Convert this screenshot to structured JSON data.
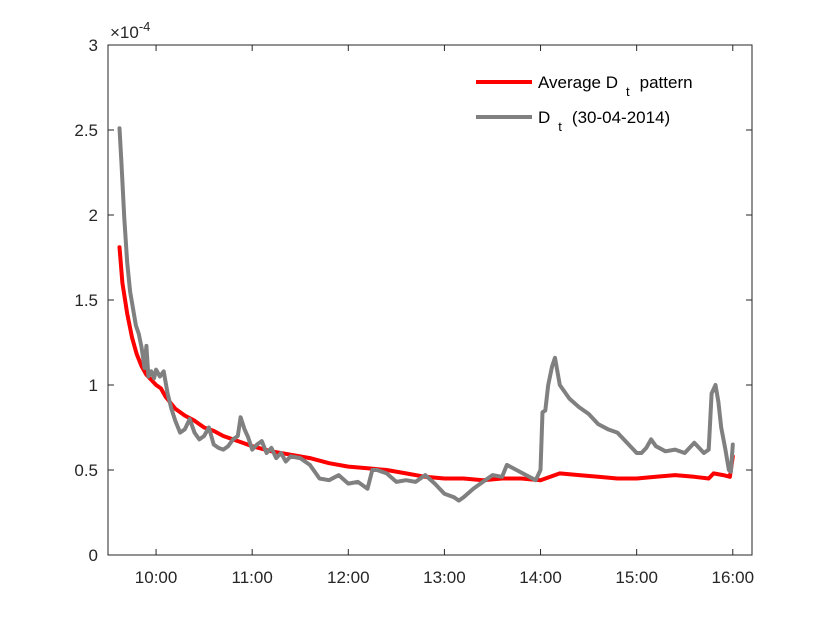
{
  "chart_data": {
    "type": "line",
    "xlim": [
      9.5,
      16.2
    ],
    "ylim": [
      0,
      3
    ],
    "y_exponent_label": "×10",
    "y_exponent_power": "-4",
    "xticks": [
      {
        "value": 10,
        "label": "10:00"
      },
      {
        "value": 11,
        "label": "11:00"
      },
      {
        "value": 12,
        "label": "12:00"
      },
      {
        "value": 13,
        "label": "13:00"
      },
      {
        "value": 14,
        "label": "14:00"
      },
      {
        "value": 15,
        "label": "15:00"
      },
      {
        "value": 16,
        "label": "16:00"
      }
    ],
    "yticks": [
      {
        "value": 0,
        "label": "0"
      },
      {
        "value": 0.5,
        "label": "0.5"
      },
      {
        "value": 1,
        "label": "1"
      },
      {
        "value": 1.5,
        "label": "1.5"
      },
      {
        "value": 2,
        "label": "2"
      },
      {
        "value": 2.5,
        "label": "2.5"
      },
      {
        "value": 3,
        "label": "3"
      }
    ],
    "grid": false,
    "legend_position": "top-right",
    "series": [
      {
        "legend_main": "Average D",
        "legend_sub": "t",
        "legend_tail": "pattern",
        "color": "#ff0000",
        "points": [
          [
            9.62,
            1.81
          ],
          [
            9.65,
            1.6
          ],
          [
            9.7,
            1.42
          ],
          [
            9.75,
            1.28
          ],
          [
            9.8,
            1.18
          ],
          [
            9.85,
            1.11
          ],
          [
            9.9,
            1.06
          ],
          [
            9.95,
            1.03
          ],
          [
            10.0,
            1.0
          ],
          [
            10.05,
            0.98
          ],
          [
            10.1,
            0.93
          ],
          [
            10.2,
            0.86
          ],
          [
            10.3,
            0.82
          ],
          [
            10.4,
            0.79
          ],
          [
            10.5,
            0.75
          ],
          [
            10.6,
            0.73
          ],
          [
            10.7,
            0.7
          ],
          [
            10.8,
            0.68
          ],
          [
            10.9,
            0.66
          ],
          [
            11.0,
            0.64
          ],
          [
            11.2,
            0.61
          ],
          [
            11.4,
            0.59
          ],
          [
            11.6,
            0.57
          ],
          [
            11.8,
            0.54
          ],
          [
            12.0,
            0.52
          ],
          [
            12.2,
            0.51
          ],
          [
            12.4,
            0.5
          ],
          [
            12.6,
            0.48
          ],
          [
            12.8,
            0.46
          ],
          [
            13.0,
            0.45
          ],
          [
            13.2,
            0.45
          ],
          [
            13.4,
            0.44
          ],
          [
            13.6,
            0.45
          ],
          [
            13.8,
            0.45
          ],
          [
            14.0,
            0.44
          ],
          [
            14.2,
            0.48
          ],
          [
            14.4,
            0.47
          ],
          [
            14.6,
            0.46
          ],
          [
            14.8,
            0.45
          ],
          [
            15.0,
            0.45
          ],
          [
            15.2,
            0.46
          ],
          [
            15.4,
            0.47
          ],
          [
            15.6,
            0.46
          ],
          [
            15.75,
            0.45
          ],
          [
            15.8,
            0.48
          ],
          [
            15.9,
            0.47
          ],
          [
            15.97,
            0.46
          ],
          [
            16.0,
            0.58
          ]
        ]
      },
      {
        "legend_main": "D",
        "legend_sub": "t",
        "legend_tail": "(30-04-2014)",
        "color": "#808080",
        "points": [
          [
            9.62,
            2.51
          ],
          [
            9.64,
            2.3
          ],
          [
            9.67,
            1.98
          ],
          [
            9.7,
            1.72
          ],
          [
            9.73,
            1.55
          ],
          [
            9.76,
            1.45
          ],
          [
            9.79,
            1.35
          ],
          [
            9.82,
            1.3
          ],
          [
            9.85,
            1.22
          ],
          [
            9.88,
            1.1
          ],
          [
            9.9,
            1.23
          ],
          [
            9.92,
            1.05
          ],
          [
            9.95,
            1.08
          ],
          [
            9.98,
            1.04
          ],
          [
            10.0,
            1.09
          ],
          [
            10.04,
            1.05
          ],
          [
            10.08,
            1.08
          ],
          [
            10.12,
            0.95
          ],
          [
            10.16,
            0.86
          ],
          [
            10.2,
            0.79
          ],
          [
            10.25,
            0.72
          ],
          [
            10.3,
            0.74
          ],
          [
            10.35,
            0.8
          ],
          [
            10.4,
            0.72
          ],
          [
            10.45,
            0.68
          ],
          [
            10.5,
            0.7
          ],
          [
            10.55,
            0.75
          ],
          [
            10.6,
            0.65
          ],
          [
            10.65,
            0.63
          ],
          [
            10.7,
            0.62
          ],
          [
            10.75,
            0.64
          ],
          [
            10.8,
            0.68
          ],
          [
            10.85,
            0.7
          ],
          [
            10.88,
            0.81
          ],
          [
            10.92,
            0.74
          ],
          [
            10.96,
            0.69
          ],
          [
            11.0,
            0.62
          ],
          [
            11.05,
            0.65
          ],
          [
            11.1,
            0.67
          ],
          [
            11.15,
            0.6
          ],
          [
            11.2,
            0.63
          ],
          [
            11.25,
            0.57
          ],
          [
            11.3,
            0.6
          ],
          [
            11.35,
            0.55
          ],
          [
            11.4,
            0.58
          ],
          [
            11.5,
            0.57
          ],
          [
            11.6,
            0.53
          ],
          [
            11.7,
            0.45
          ],
          [
            11.8,
            0.44
          ],
          [
            11.9,
            0.47
          ],
          [
            12.0,
            0.42
          ],
          [
            12.1,
            0.43
          ],
          [
            12.2,
            0.39
          ],
          [
            12.25,
            0.5
          ],
          [
            12.3,
            0.5
          ],
          [
            12.4,
            0.48
          ],
          [
            12.5,
            0.43
          ],
          [
            12.6,
            0.44
          ],
          [
            12.7,
            0.43
          ],
          [
            12.8,
            0.47
          ],
          [
            12.9,
            0.42
          ],
          [
            13.0,
            0.36
          ],
          [
            13.1,
            0.34
          ],
          [
            13.15,
            0.32
          ],
          [
            13.2,
            0.34
          ],
          [
            13.3,
            0.39
          ],
          [
            13.4,
            0.43
          ],
          [
            13.5,
            0.47
          ],
          [
            13.6,
            0.46
          ],
          [
            13.65,
            0.53
          ],
          [
            13.75,
            0.5
          ],
          [
            13.85,
            0.47
          ],
          [
            13.95,
            0.44
          ],
          [
            14.0,
            0.5
          ],
          [
            14.02,
            0.84
          ],
          [
            14.05,
            0.85
          ],
          [
            14.08,
            1.0
          ],
          [
            14.12,
            1.11
          ],
          [
            14.15,
            1.16
          ],
          [
            14.2,
            1.0
          ],
          [
            14.3,
            0.92
          ],
          [
            14.4,
            0.87
          ],
          [
            14.5,
            0.83
          ],
          [
            14.6,
            0.77
          ],
          [
            14.7,
            0.74
          ],
          [
            14.8,
            0.72
          ],
          [
            14.9,
            0.66
          ],
          [
            15.0,
            0.6
          ],
          [
            15.05,
            0.6
          ],
          [
            15.1,
            0.63
          ],
          [
            15.15,
            0.68
          ],
          [
            15.2,
            0.64
          ],
          [
            15.3,
            0.61
          ],
          [
            15.4,
            0.62
          ],
          [
            15.5,
            0.6
          ],
          [
            15.6,
            0.66
          ],
          [
            15.7,
            0.6
          ],
          [
            15.75,
            0.62
          ],
          [
            15.78,
            0.95
          ],
          [
            15.82,
            1.0
          ],
          [
            15.85,
            0.9
          ],
          [
            15.88,
            0.75
          ],
          [
            15.92,
            0.63
          ],
          [
            15.96,
            0.5
          ],
          [
            15.98,
            0.49
          ],
          [
            16.0,
            0.65
          ]
        ]
      }
    ]
  }
}
